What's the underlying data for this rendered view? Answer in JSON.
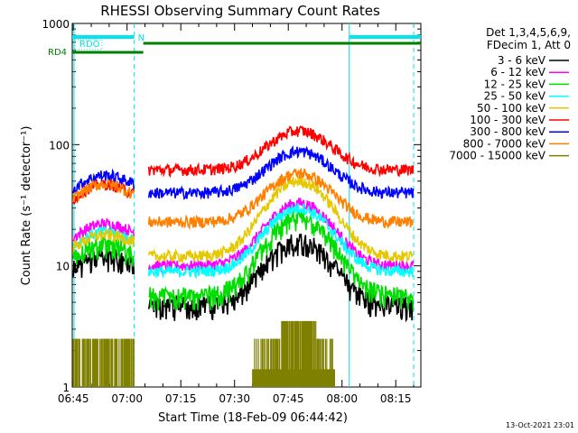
{
  "chart_data": {
    "type": "line",
    "title": "RHESSI Observing Summary Count Rates",
    "xlabel": "Start Time (18-Feb-09 06:44:42)",
    "ylabel": "Count Rate (s⁻¹ detector⁻¹)",
    "y_scale": "log",
    "ylim": [
      1,
      1000
    ],
    "xlim": [
      "06:44:42",
      "08:22:00"
    ],
    "grid": false,
    "legend_position": "right",
    "x_tick_labels": [
      "06:45",
      "07:00",
      "07:15",
      "07:30",
      "07:45",
      "08:00",
      "08:15"
    ],
    "y_tick_labels": [
      "1",
      "10",
      "100",
      "1000"
    ],
    "legend_header": [
      "Det 1,3,4,5,6,9,",
      "FDecim 1, Att 0"
    ],
    "time_markers": {
      "night_start": "07:02",
      "night_end": "08:02",
      "extra": "08:20"
    },
    "flag_bars": [
      {
        "label": "RDO",
        "segments": [
          [
            "06:45",
            "07:02"
          ],
          [
            "08:02",
            "08:20"
          ]
        ],
        "color": "#00e5ee"
      },
      {
        "label": "N",
        "segments": [],
        "color": "#00e5ee"
      },
      {
        "label": "RD4",
        "segments": [
          [
            "06:45",
            "07:05"
          ],
          [
            "07:05",
            "08:20"
          ]
        ],
        "color": "#008000"
      }
    ],
    "series": [
      {
        "name": "3 - 6 keV",
        "color": "#000000",
        "peak_time": "07:48",
        "values_hint": {
          "start": 8,
          "hump1": 12,
          "gap_low": 5,
          "peak": 17,
          "end": 5
        }
      },
      {
        "name": "6 - 12 keV",
        "color": "#ff00ff",
        "peak_time": "07:48",
        "values_hint": {
          "start": 14,
          "hump1": 21,
          "gap_low": 10,
          "peak": 33,
          "end": 13
        }
      },
      {
        "name": "12 - 25 keV",
        "color": "#00dd00",
        "peak_time": "07:48",
        "values_hint": {
          "start": 10,
          "hump1": 15,
          "gap_low": 6,
          "peak": 26,
          "end": 7
        }
      },
      {
        "name": "25 - 50 keV",
        "color": "#00ffff",
        "peak_time": "07:48",
        "values_hint": {
          "start": 12,
          "hump1": 18,
          "gap_low": 9,
          "peak": 30,
          "end": 10
        }
      },
      {
        "name": "50 - 100 keV",
        "color": "#e6c800",
        "peak_time": "07:48",
        "values_hint": {
          "start": 12,
          "hump1": 17,
          "gap_low": 12,
          "peak": 50,
          "end": 17
        }
      },
      {
        "name": "100 - 300 keV",
        "color": "#ff0000",
        "peak_time": "07:48",
        "values_hint": {
          "start": 28,
          "hump1": 45,
          "gap_low": 62,
          "peak": 130,
          "end": 52
        }
      },
      {
        "name": "300 - 800 keV",
        "color": "#0000ff",
        "peak_time": "07:48",
        "values_hint": {
          "start": 35,
          "hump1": 53,
          "gap_low": 40,
          "peak": 88,
          "end": 38
        }
      },
      {
        "name": "800 - 7000 keV",
        "color": "#ff8000",
        "peak_time": "07:48",
        "values_hint": {
          "start": 28,
          "hump1": 45,
          "gap_low": 23,
          "peak": 58,
          "end": 23
        }
      },
      {
        "name": "7000 - 15000 keV",
        "color": "#808000",
        "peak_time": "07:48",
        "values_hint": {
          "start": 2.5,
          "hump1": 2.5,
          "gap_low": 1,
          "peak": 3.5,
          "end": 1
        }
      }
    ]
  },
  "footer": {
    "timestamp": "13-Oct-2021 23:01"
  }
}
